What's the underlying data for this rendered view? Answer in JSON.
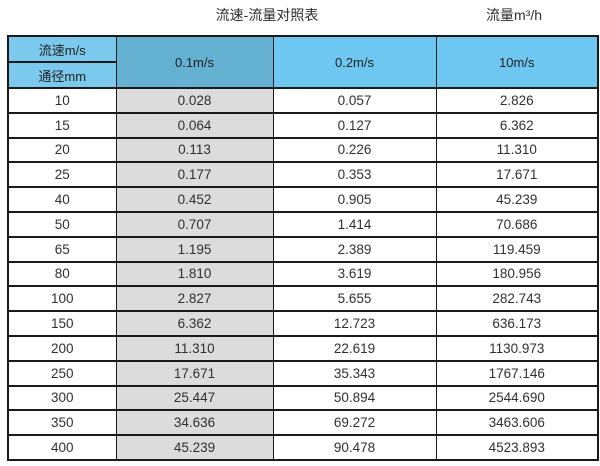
{
  "titles": {
    "left": "流速-流量对照表",
    "right": "流量m³/h"
  },
  "table": {
    "corner_top": "流速m/s",
    "corner_bottom": "通径mm",
    "velocity_columns": [
      "0.1m/s",
      "0.2m/s",
      "10m/s"
    ],
    "rows": [
      {
        "diameter": "10",
        "values": [
          "0.028",
          "0.057",
          "2.826"
        ]
      },
      {
        "diameter": "15",
        "values": [
          "0.064",
          "0.127",
          "6.362"
        ]
      },
      {
        "diameter": "20",
        "values": [
          "0.113",
          "0.226",
          "11.310"
        ]
      },
      {
        "diameter": "25",
        "values": [
          "0.177",
          "0.353",
          "17.671"
        ]
      },
      {
        "diameter": "40",
        "values": [
          "0.452",
          "0.905",
          "45.239"
        ]
      },
      {
        "diameter": "50",
        "values": [
          "0.707",
          "1.414",
          "70.686"
        ]
      },
      {
        "diameter": "65",
        "values": [
          "1.195",
          "2.389",
          "119.459"
        ]
      },
      {
        "diameter": "80",
        "values": [
          "1.810",
          "3.619",
          "180.956"
        ]
      },
      {
        "diameter": "100",
        "values": [
          "2.827",
          "5.655",
          "282.743"
        ]
      },
      {
        "diameter": "150",
        "values": [
          "6.362",
          "12.723",
          "636.173"
        ]
      },
      {
        "diameter": "200",
        "values": [
          "11.310",
          "22.619",
          "1130.973"
        ]
      },
      {
        "diameter": "250",
        "values": [
          "17.671",
          "35.343",
          "1767.146"
        ]
      },
      {
        "diameter": "300",
        "values": [
          "25.447",
          "50.894",
          "2544.690"
        ]
      },
      {
        "diameter": "350",
        "values": [
          "34.636",
          "69.272",
          "3463.606"
        ]
      },
      {
        "diameter": "400",
        "values": [
          "45.239",
          "90.478",
          "4523.893"
        ]
      }
    ]
  },
  "colors": {
    "header_corner_bg": "#7bc9ec",
    "header_highlight_bg": "#64b1d1",
    "header_bg": "#6ec7f0",
    "shaded_column_bg": "#dcdcdc",
    "border": "#1a1a1a",
    "text": "#333333"
  },
  "chart_data": {
    "type": "table",
    "title": "流速-流量对照表",
    "unit_label": "流量m³/h",
    "row_header_label": "通径mm",
    "column_header_label": "流速m/s",
    "columns": [
      "0.1m/s",
      "0.2m/s",
      "10m/s"
    ],
    "diameters_mm": [
      10,
      15,
      20,
      25,
      40,
      50,
      65,
      80,
      100,
      150,
      200,
      250,
      300,
      350,
      400
    ],
    "flow_m3h_at_0_1ms": [
      0.028,
      0.064,
      0.113,
      0.177,
      0.452,
      0.707,
      1.195,
      1.81,
      2.827,
      6.362,
      11.31,
      17.671,
      25.447,
      34.636,
      45.239
    ],
    "flow_m3h_at_0_2ms": [
      0.057,
      0.127,
      0.226,
      0.353,
      0.905,
      1.414,
      2.389,
      3.619,
      5.655,
      12.723,
      22.619,
      35.343,
      50.894,
      69.272,
      90.478
    ],
    "flow_m3h_at_10ms": [
      2.826,
      6.362,
      11.31,
      17.671,
      45.239,
      70.686,
      119.459,
      180.956,
      282.743,
      636.173,
      1130.973,
      1767.146,
      2544.69,
      3463.606,
      4523.893
    ]
  }
}
